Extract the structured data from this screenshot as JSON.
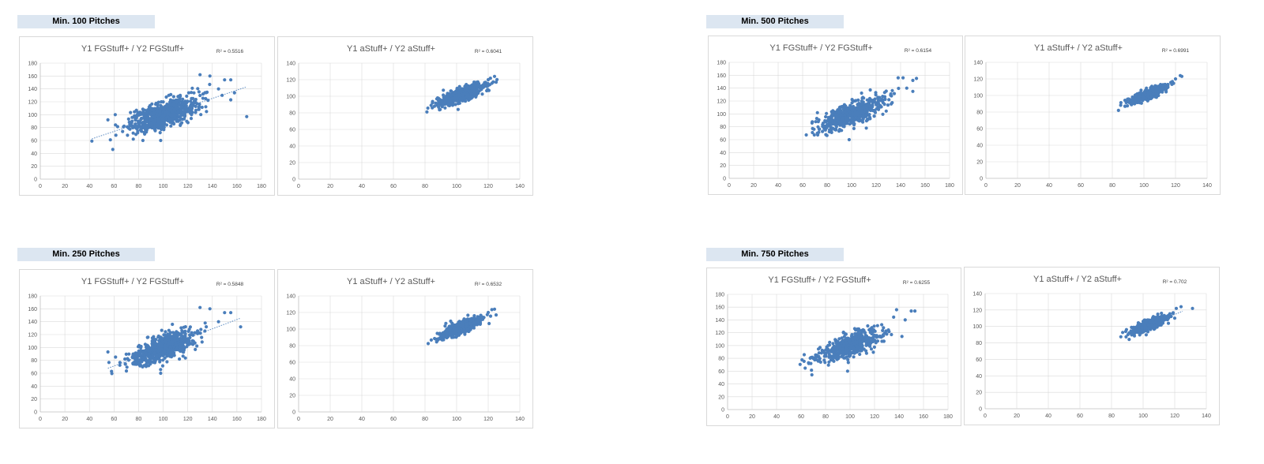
{
  "groups": [
    {
      "label": "Min. 100 Pitches"
    },
    {
      "label": "Min. 500 Pitches"
    },
    {
      "label": "Min. 250 Pitches"
    },
    {
      "label": "Min. 750 Pitches"
    }
  ],
  "chart_data": [
    {
      "type": "scatter",
      "group": "Min. 100 Pitches",
      "title": "Y1 FGStuff+ / Y2 FGStuff+",
      "r2": "R² = 0.5516",
      "xlim": [
        0,
        180
      ],
      "ylim": [
        0,
        180
      ],
      "x_ticks": [
        0,
        20,
        40,
        60,
        80,
        100,
        120,
        140,
        160,
        180
      ],
      "y_ticks": [
        0,
        20,
        40,
        60,
        80,
        100,
        120,
        140,
        160,
        180
      ],
      "trendline": true,
      "trend_x": [
        42,
        168
      ],
      "cloud": {
        "x_mean": 100,
        "y_mean": 100,
        "x_sd": 14,
        "slope": 0.6,
        "resid_sd": 10,
        "n": 700
      },
      "outliers": [
        [
          42,
          59
        ],
        [
          55,
          92
        ],
        [
          59,
          46
        ],
        [
          61,
          100
        ],
        [
          57,
          61
        ],
        [
          98,
          60
        ],
        [
          130,
          162
        ],
        [
          138,
          160
        ],
        [
          150,
          154
        ],
        [
          155,
          154
        ],
        [
          155,
          123
        ],
        [
          158,
          134
        ],
        [
          168,
          97
        ],
        [
          145,
          140
        ],
        [
          148,
          130
        ]
      ]
    },
    {
      "type": "scatter",
      "group": "Min. 100 Pitches",
      "title": "Y1 aStuff+ / Y2 aStuff+",
      "r2": "R² = 0.6041",
      "xlim": [
        0,
        140
      ],
      "ylim": [
        0,
        140
      ],
      "x_ticks": [
        0,
        20,
        40,
        60,
        80,
        100,
        120,
        140
      ],
      "y_ticks": [
        0,
        20,
        40,
        60,
        80,
        100,
        120,
        140
      ],
      "trendline": false,
      "cloud": {
        "x_mean": 103,
        "y_mean": 102,
        "x_sd": 7,
        "slope": 0.7,
        "resid_sd": 4,
        "n": 600
      },
      "outliers": [
        [
          86,
          88
        ],
        [
          88,
          98
        ],
        [
          120,
          120
        ],
        [
          124,
          124
        ],
        [
          125,
          117
        ],
        [
          121,
          114
        ]
      ]
    },
    {
      "type": "scatter",
      "group": "Min. 500 Pitches",
      "title": "Y1 FGStuff+ / Y2 FGStuff+",
      "r2": "R² = 0.6154",
      "xlim": [
        0,
        180
      ],
      "ylim": [
        0,
        180
      ],
      "x_ticks": [
        0,
        20,
        40,
        60,
        80,
        100,
        120,
        140,
        160,
        180
      ],
      "y_ticks": [
        0,
        20,
        40,
        60,
        80,
        100,
        120,
        140,
        160,
        180
      ],
      "trendline": false,
      "cloud": {
        "x_mean": 100,
        "y_mean": 100,
        "x_sd": 13,
        "slope": 0.7,
        "resid_sd": 9,
        "n": 550
      },
      "outliers": [
        [
          68,
          71
        ],
        [
          72,
          70
        ],
        [
          98,
          60
        ],
        [
          138,
          156
        ],
        [
          142,
          156
        ],
        [
          150,
          152
        ],
        [
          153,
          155
        ],
        [
          145,
          140
        ],
        [
          150,
          135
        ]
      ]
    },
    {
      "type": "scatter",
      "group": "Min. 500 Pitches",
      "title": "Y1 aStuff+ / Y2 aStuff+",
      "r2": "R² = 0.6991",
      "xlim": [
        0,
        140
      ],
      "ylim": [
        0,
        140
      ],
      "x_ticks": [
        0,
        20,
        40,
        60,
        80,
        100,
        120,
        140
      ],
      "y_ticks": [
        0,
        20,
        40,
        60,
        80,
        100,
        120,
        140
      ],
      "trendline": false,
      "cloud": {
        "x_mean": 103,
        "y_mean": 102,
        "x_sd": 6,
        "slope": 0.75,
        "resid_sd": 3,
        "n": 500
      },
      "outliers": [
        [
          88,
          87
        ],
        [
          120,
          120
        ],
        [
          123,
          124
        ],
        [
          124,
          123
        ]
      ]
    },
    {
      "type": "scatter",
      "group": "Min. 250 Pitches",
      "title": "Y1 FGStuff+ / Y2 FGStuff+",
      "r2": "R² = 0.5848",
      "xlim": [
        0,
        180
      ],
      "ylim": [
        0,
        180
      ],
      "x_ticks": [
        0,
        20,
        40,
        60,
        80,
        100,
        120,
        140,
        160,
        180
      ],
      "y_ticks": [
        0,
        20,
        40,
        60,
        80,
        100,
        120,
        140,
        160,
        180
      ],
      "trendline": true,
      "trend_x": [
        55,
        163
      ],
      "cloud": {
        "x_mean": 100,
        "y_mean": 100,
        "x_sd": 13,
        "slope": 0.65,
        "resid_sd": 9.5,
        "n": 650
      },
      "outliers": [
        [
          55,
          93
        ],
        [
          58,
          63
        ],
        [
          98,
          60
        ],
        [
          130,
          162
        ],
        [
          138,
          160
        ],
        [
          150,
          154
        ],
        [
          155,
          154
        ],
        [
          163,
          132
        ],
        [
          145,
          140
        ]
      ]
    },
    {
      "type": "scatter",
      "group": "Min. 250 Pitches",
      "title": "Y1 aStuff+ / Y2 aStuff+",
      "r2": "R² = 0.6532",
      "xlim": [
        0,
        140
      ],
      "ylim": [
        0,
        140
      ],
      "x_ticks": [
        0,
        20,
        40,
        60,
        80,
        100,
        120,
        140
      ],
      "y_ticks": [
        0,
        20,
        40,
        60,
        80,
        100,
        120,
        140
      ],
      "trendline": false,
      "cloud": {
        "x_mean": 103,
        "y_mean": 102,
        "x_sd": 6.5,
        "slope": 0.72,
        "resid_sd": 3.5,
        "n": 550
      },
      "outliers": [
        [
          88,
          88
        ],
        [
          120,
          120
        ],
        [
          124,
          124
        ],
        [
          125,
          117
        ]
      ]
    },
    {
      "type": "scatter",
      "group": "Min. 750 Pitches",
      "title": "Y1 FGStuff+ / Y2 FGStuff+",
      "r2": "R² = 0.6255",
      "xlim": [
        0,
        180
      ],
      "ylim": [
        0,
        180
      ],
      "x_ticks": [
        0,
        20,
        40,
        60,
        80,
        100,
        120,
        140,
        160,
        180
      ],
      "y_ticks": [
        0,
        20,
        40,
        60,
        80,
        100,
        120,
        140,
        160,
        180
      ],
      "trendline": false,
      "cloud": {
        "x_mean": 100,
        "y_mean": 100,
        "x_sd": 13,
        "slope": 0.7,
        "resid_sd": 9,
        "n": 500
      },
      "outliers": [
        [
          68,
          72
        ],
        [
          70,
          80
        ],
        [
          98,
          60
        ],
        [
          138,
          156
        ],
        [
          150,
          154
        ],
        [
          153,
          154
        ],
        [
          145,
          140
        ]
      ]
    },
    {
      "type": "scatter",
      "group": "Min. 750 Pitches",
      "title": "Y1 aStuff+ / Y2 aStuff+",
      "r2": "R² = 0.702",
      "xlim": [
        0,
        140
      ],
      "ylim": [
        0,
        140
      ],
      "x_ticks": [
        0,
        20,
        40,
        60,
        80,
        100,
        120,
        140
      ],
      "y_ticks": [
        0,
        20,
        40,
        60,
        80,
        100,
        120,
        140
      ],
      "trendline": true,
      "trend_x": [
        90,
        125
      ],
      "cloud": {
        "x_mean": 104,
        "y_mean": 102,
        "x_sd": 6,
        "slope": 0.78,
        "resid_sd": 3,
        "n": 450
      },
      "outliers": [
        [
          89,
          94
        ],
        [
          121,
          122
        ],
        [
          124,
          124
        ]
      ]
    }
  ]
}
